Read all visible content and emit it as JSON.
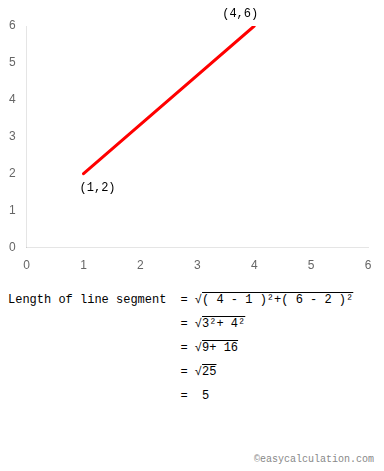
{
  "chart_data": {
    "type": "line",
    "x": [
      1,
      4
    ],
    "values": [
      2,
      6
    ],
    "color": "#ff0000",
    "xlim": [
      0,
      6
    ],
    "ylim": [
      0,
      6
    ],
    "xticks": [
      0,
      1,
      2,
      3,
      4,
      5,
      6
    ],
    "yticks": [
      0,
      1,
      2,
      3,
      4,
      5,
      6
    ],
    "grid": false,
    "annotations": [
      {
        "text": "(1,2)",
        "x": 1,
        "y": 2
      },
      {
        "text": "(4,6)",
        "x": 4,
        "y": 6
      },
      {
        "text": "Length of line segment",
        "lines": [
          "= √( 4 - 1 )²+( 6 - 2 )²",
          "= √3²+ 4²",
          "= √9+ 16",
          "= √25",
          "=  5"
        ]
      },
      {
        "text": "©easycalculation.com"
      }
    ]
  }
}
